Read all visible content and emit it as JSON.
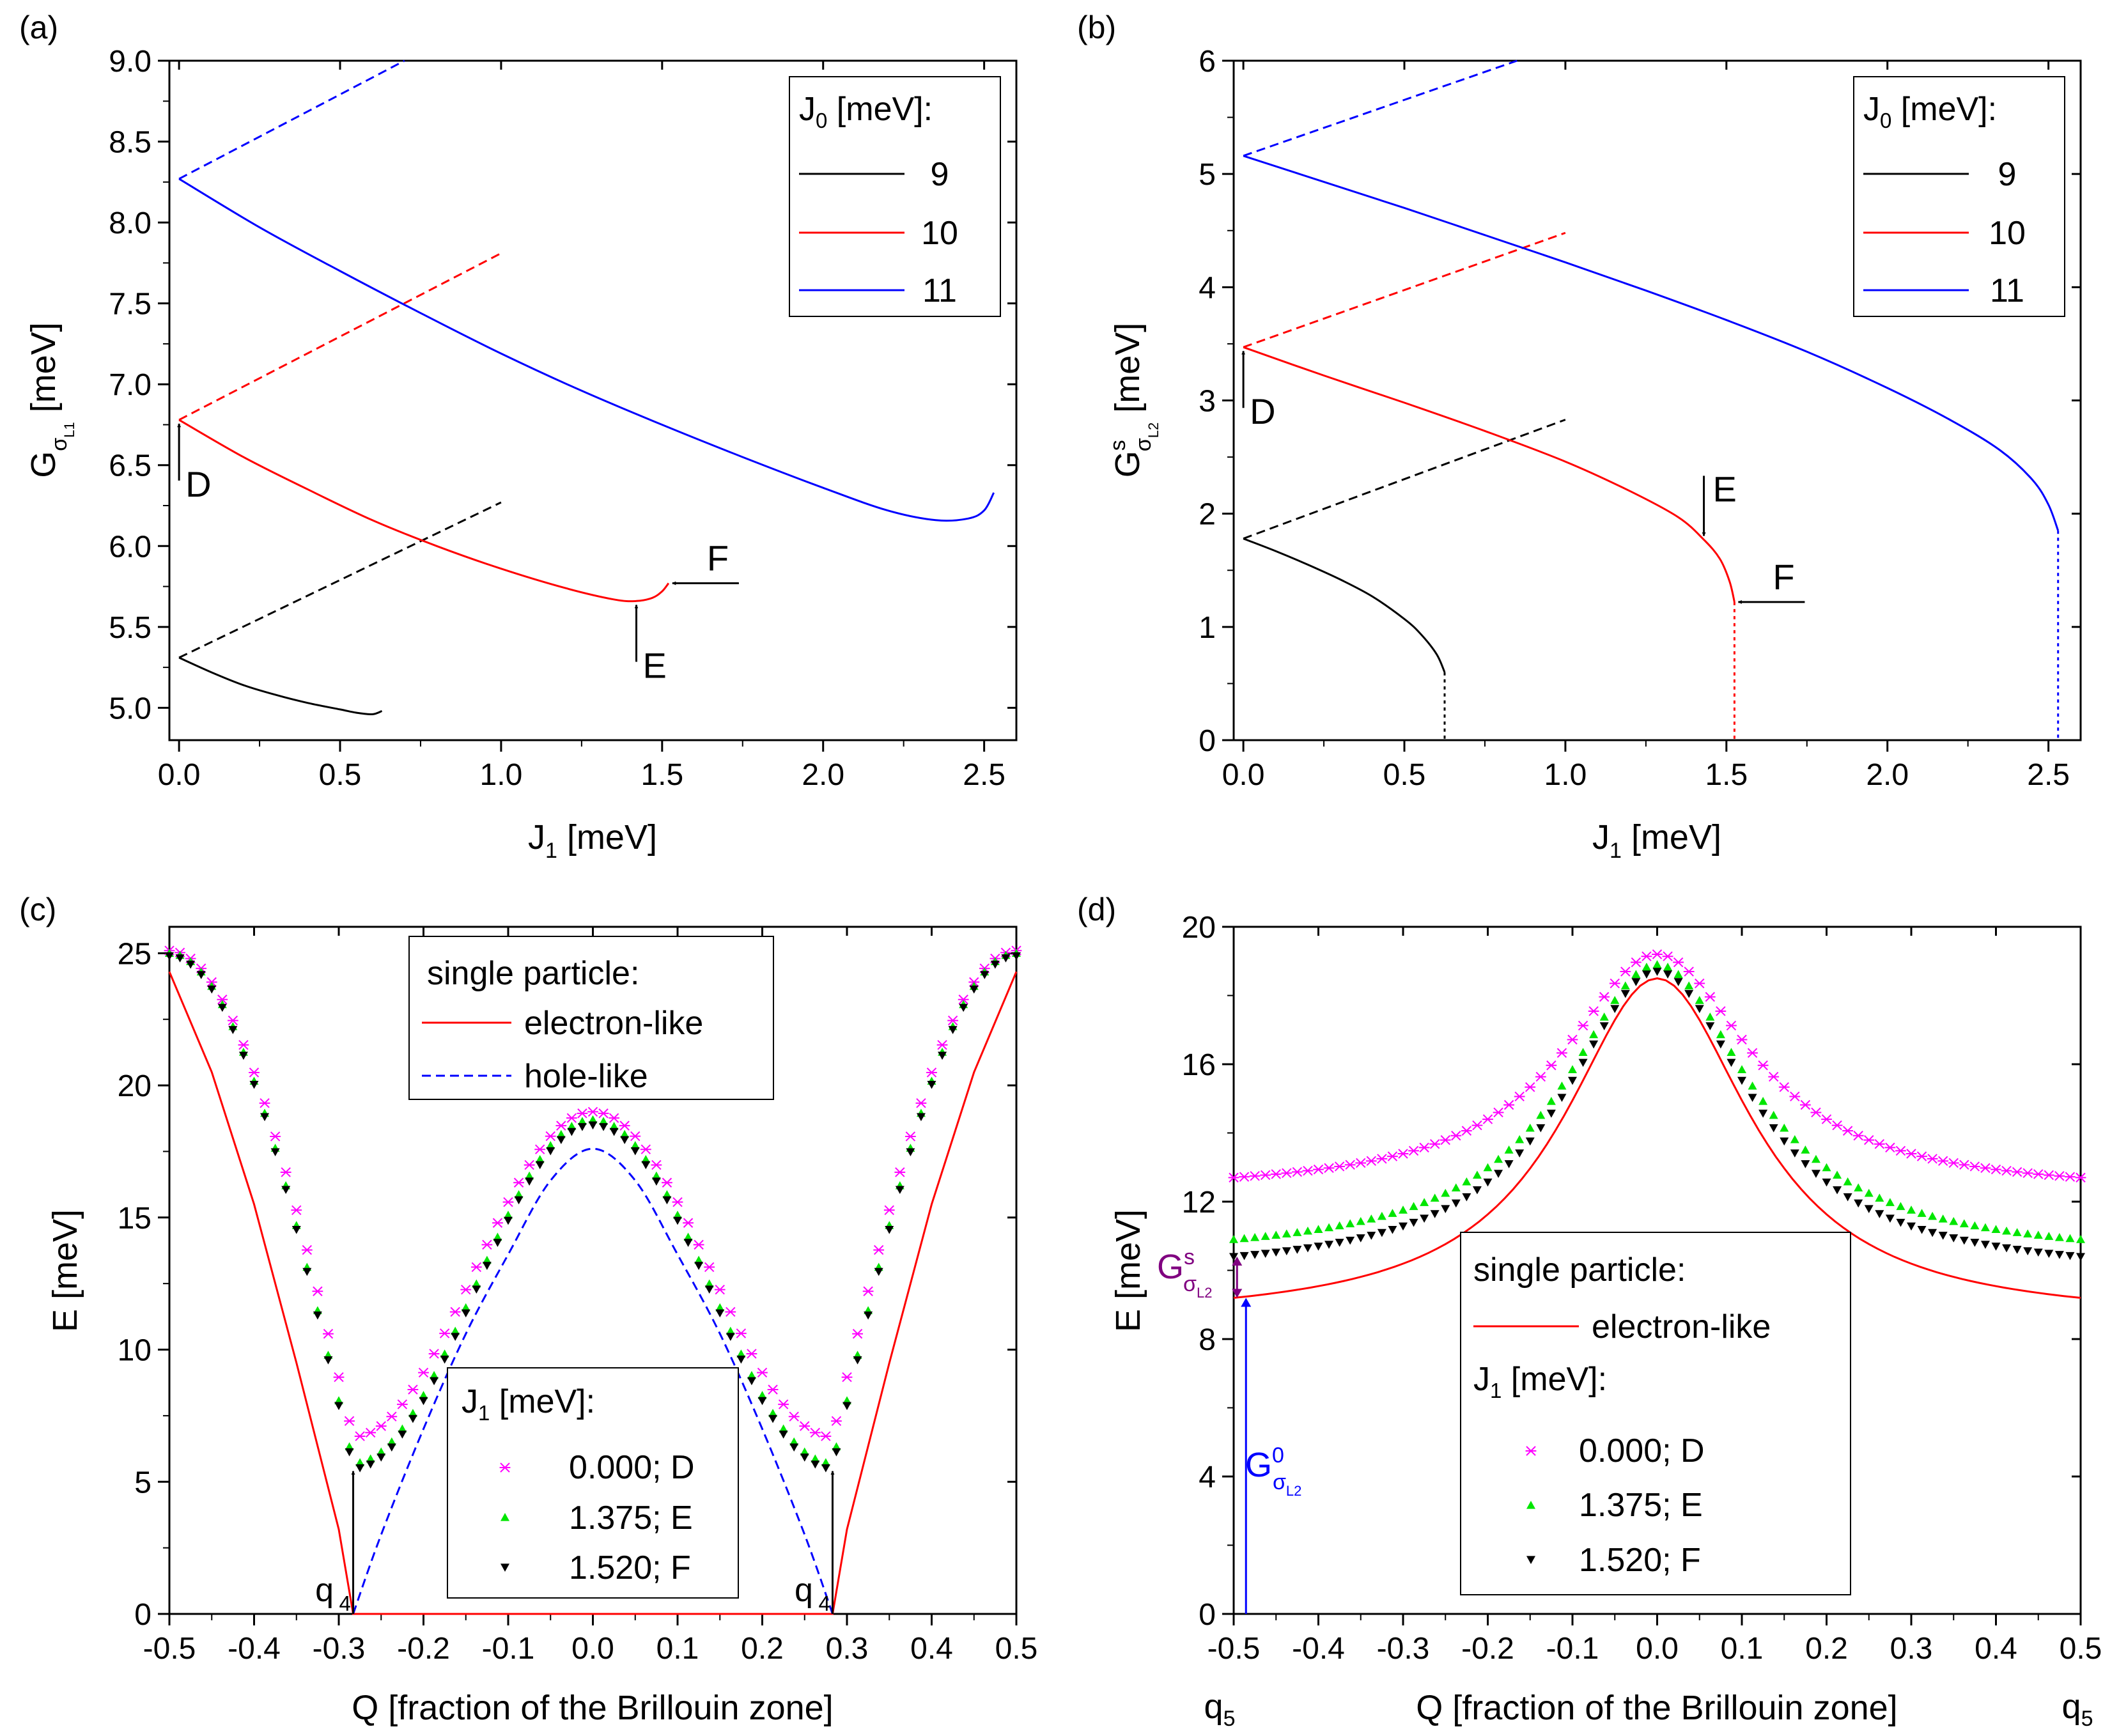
{
  "colors": {
    "black": "#000000",
    "red": "#ff0000",
    "blue": "#0000ff",
    "magenta": "#ff00ff",
    "green": "#00e600",
    "purple": "#800080",
    "axis": "#000000"
  },
  "chart_data": [
    {
      "id": "a",
      "type": "line",
      "panel_label": "(a)",
      "xlabel": "J",
      "xlabel_sub": "1",
      "xlabel_unit": " [meV]",
      "ylabel": "G",
      "ylabel_sub": "σ",
      "ylabel_subsub": "L1",
      "ylabel_unit": " [meV]",
      "xlim": [
        -0.03,
        2.6
      ],
      "ylim": [
        4.8,
        9.0
      ],
      "xticks": [
        0.0,
        0.5,
        1.0,
        1.5,
        2.0,
        2.5
      ],
      "xtick_labels": [
        "0.0",
        "0.5",
        "1.0",
        "1.5",
        "2.0",
        "2.5"
      ],
      "yticks": [
        5.0,
        5.5,
        6.0,
        6.5,
        7.0,
        7.5,
        8.0,
        8.5,
        9.0
      ],
      "ytick_labels": [
        "5.0",
        "5.5",
        "6.0",
        "6.5",
        "7.0",
        "7.5",
        "8.0",
        "8.5",
        "9.0"
      ],
      "legend": {
        "title": "J",
        "title_sub": "0",
        "title_unit": " [meV]:",
        "entries": [
          "9",
          "10",
          "11"
        ],
        "colors": [
          "black",
          "red",
          "blue"
        ]
      },
      "series": [
        {
          "name": "9",
          "color": "black",
          "dash": false,
          "x": [
            0.0,
            0.1,
            0.2,
            0.3,
            0.4,
            0.5,
            0.55,
            0.6,
            0.63
          ],
          "y": [
            5.31,
            5.22,
            5.14,
            5.08,
            5.03,
            4.99,
            4.97,
            4.96,
            4.98
          ]
        },
        {
          "name": "9 (dashed)",
          "color": "black",
          "dash": true,
          "x": [
            0.0,
            1.0
          ],
          "y": [
            5.31,
            6.27
          ]
        },
        {
          "name": "10",
          "color": "red",
          "dash": false,
          "x": [
            0.0,
            0.2,
            0.4,
            0.6,
            0.8,
            1.0,
            1.2,
            1.35,
            1.42,
            1.47,
            1.5,
            1.52
          ],
          "y": [
            6.78,
            6.55,
            6.35,
            6.16,
            6.0,
            5.86,
            5.74,
            5.67,
            5.66,
            5.68,
            5.72,
            5.77
          ]
        },
        {
          "name": "10 (dashed)",
          "color": "red",
          "dash": true,
          "x": [
            0.0,
            1.0
          ],
          "y": [
            6.78,
            7.81
          ]
        },
        {
          "name": "11",
          "color": "blue",
          "dash": false,
          "x": [
            0.0,
            0.25,
            0.5,
            0.75,
            1.0,
            1.25,
            1.5,
            1.75,
            2.0,
            2.2,
            2.35,
            2.45,
            2.5,
            2.53
          ],
          "y": [
            8.27,
            7.97,
            7.7,
            7.44,
            7.19,
            6.96,
            6.75,
            6.55,
            6.36,
            6.22,
            6.16,
            6.17,
            6.22,
            6.33
          ]
        },
        {
          "name": "11 (dashed)",
          "color": "blue",
          "dash": true,
          "x": [
            0.0,
            0.7
          ],
          "y": [
            8.27,
            9.0
          ]
        }
      ],
      "annotations": [
        {
          "text": "D",
          "x": 0.0,
          "y": 6.78,
          "dir": "up"
        },
        {
          "text": "E",
          "x": 1.42,
          "y": 5.66,
          "dir": "up"
        },
        {
          "text": "F",
          "x": 1.52,
          "y": 5.77,
          "dir": "left"
        }
      ]
    },
    {
      "id": "b",
      "type": "line",
      "panel_label": "(b)",
      "xlabel": "J",
      "xlabel_sub": "1",
      "xlabel_unit": " [meV]",
      "ylabel": "G",
      "ylabel_sup": "s",
      "ylabel_sub": "σ",
      "ylabel_subsub": "L2",
      "ylabel_unit": " [meV]",
      "xlim": [
        -0.03,
        2.6
      ],
      "ylim": [
        0,
        6
      ],
      "xticks": [
        0.0,
        0.5,
        1.0,
        1.5,
        2.0,
        2.5
      ],
      "xtick_labels": [
        "0.0",
        "0.5",
        "1.0",
        "1.5",
        "2.0",
        "2.5"
      ],
      "yticks": [
        0,
        1,
        2,
        3,
        4,
        5,
        6
      ],
      "ytick_labels": [
        "0",
        "1",
        "2",
        "3",
        "4",
        "5",
        "6"
      ],
      "legend": {
        "title": "J",
        "title_sub": "0",
        "title_unit": " [meV]:",
        "entries": [
          "9",
          "10",
          "11"
        ],
        "colors": [
          "black",
          "red",
          "blue"
        ]
      },
      "series": [
        {
          "name": "9",
          "color": "black",
          "dash": false,
          "x": [
            0.0,
            0.1,
            0.2,
            0.3,
            0.4,
            0.5,
            0.55,
            0.6,
            0.625
          ],
          "y": [
            1.78,
            1.67,
            1.55,
            1.42,
            1.27,
            1.07,
            0.94,
            0.76,
            0.6
          ]
        },
        {
          "name": "9 (dashed)",
          "color": "black",
          "dash": true,
          "x": [
            0.0,
            1.0
          ],
          "y": [
            1.78,
            2.83
          ]
        },
        {
          "name": "9 (dotted)",
          "color": "black",
          "dash": "dot",
          "x": [
            0.625,
            0.625
          ],
          "y": [
            0.6,
            0
          ]
        },
        {
          "name": "10",
          "color": "red",
          "dash": false,
          "x": [
            0.0,
            0.25,
            0.5,
            0.75,
            1.0,
            1.2,
            1.35,
            1.43,
            1.48,
            1.51,
            1.525
          ],
          "y": [
            3.47,
            3.22,
            2.98,
            2.73,
            2.46,
            2.2,
            1.97,
            1.77,
            1.6,
            1.4,
            1.22
          ]
        },
        {
          "name": "10 (dashed)",
          "color": "red",
          "dash": true,
          "x": [
            0.0,
            1.0
          ],
          "y": [
            3.47,
            4.48
          ]
        },
        {
          "name": "10 (dotted)",
          "color": "red",
          "dash": "dot",
          "x": [
            1.525,
            1.525
          ],
          "y": [
            1.22,
            0
          ]
        },
        {
          "name": "11",
          "color": "blue",
          "dash": false,
          "x": [
            0.0,
            0.25,
            0.5,
            0.75,
            1.0,
            1.25,
            1.5,
            1.75,
            2.0,
            2.2,
            2.35,
            2.45,
            2.5,
            2.53
          ],
          "y": [
            5.16,
            4.93,
            4.7,
            4.46,
            4.22,
            3.97,
            3.71,
            3.43,
            3.11,
            2.82,
            2.56,
            2.3,
            2.08,
            1.85
          ]
        },
        {
          "name": "11 (dashed)",
          "color": "blue",
          "dash": true,
          "x": [
            0.0,
            0.85
          ],
          "y": [
            5.16,
            6.0
          ]
        },
        {
          "name": "11 (dotted)",
          "color": "blue",
          "dash": "dot",
          "x": [
            2.53,
            2.53
          ],
          "y": [
            1.85,
            0
          ]
        }
      ],
      "annotations": [
        {
          "text": "D",
          "x": 0.0,
          "y": 3.47,
          "dir": "up"
        },
        {
          "text": "E",
          "x": 1.43,
          "y": 1.77,
          "dir": "down"
        },
        {
          "text": "F",
          "x": 1.525,
          "y": 1.22,
          "dir": "left"
        }
      ]
    },
    {
      "id": "c",
      "type": "line+scatter",
      "panel_label": "(c)",
      "xlabel": "Q [fraction of the Brillouin zone]",
      "ylabel": "E [meV]",
      "xlim": [
        -0.5,
        0.5
      ],
      "ylim": [
        0,
        26
      ],
      "xticks": [
        -0.5,
        -0.4,
        -0.3,
        -0.2,
        -0.1,
        0.0,
        0.1,
        0.2,
        0.3,
        0.4,
        0.5
      ],
      "xtick_labels": [
        "-0.5",
        "-0.4",
        "-0.3",
        "-0.2",
        "-0.1",
        "0.0",
        "0.1",
        "0.2",
        "0.3",
        "0.4",
        "0.5"
      ],
      "yticks": [
        0,
        5,
        10,
        15,
        20,
        25
      ],
      "ytick_labels": [
        "0",
        "5",
        "10",
        "15",
        "20",
        "25"
      ],
      "lines": [
        {
          "name": "electron-like",
          "color": "red",
          "dash": false,
          "x": [
            -0.5,
            -0.45,
            -0.4,
            -0.35,
            -0.3,
            -0.283,
            0.283,
            0.3,
            0.35,
            0.4,
            0.45,
            0.5
          ],
          "y": [
            24.3,
            20.5,
            15.5,
            9.5,
            3.2,
            0.0,
            0.0,
            3.2,
            9.5,
            15.5,
            20.5,
            24.3
          ]
        },
        {
          "name": "hole-like",
          "color": "blue",
          "dash": true,
          "x": [
            -0.283,
            -0.25,
            -0.2,
            -0.15,
            -0.1,
            -0.05,
            0.0,
            0.05,
            0.1,
            0.15,
            0.2,
            0.25,
            0.283
          ],
          "y": [
            0.0,
            3.0,
            7.0,
            10.6,
            13.6,
            16.4,
            17.6,
            16.4,
            13.6,
            10.6,
            7.0,
            3.0,
            0.0
          ]
        }
      ],
      "markers": [
        {
          "name": "0.000; D",
          "color": "magenta",
          "shape": "x",
          "minimum": 6.7,
          "peak": 19.0,
          "edge": 25.1,
          "q": 0.283
        },
        {
          "name": "1.375; E",
          "color": "green",
          "shape": "tri-up",
          "minimum": 5.7,
          "peak": 18.7,
          "edge": 25.0,
          "q": 0.283
        },
        {
          "name": "1.520; F",
          "color": "black",
          "shape": "tri-down",
          "minimum": 5.5,
          "peak": 18.5,
          "edge": 24.9,
          "q": 0.283
        }
      ],
      "legend_top": {
        "title": "single particle:",
        "entries": [
          "electron-like",
          "hole-like"
        ]
      },
      "legend_bottom": {
        "title": "J",
        "title_sub": "1",
        "title_unit": " [meV]:",
        "entries": [
          "0.000; D",
          "1.375; E",
          "1.520; F"
        ]
      },
      "annotations": [
        {
          "text": "q",
          "sub": "4",
          "x": -0.283,
          "y_from": 0.0,
          "y_to": 5.5
        },
        {
          "text": "q",
          "sub": "4",
          "x": 0.283,
          "y_from": 0.0,
          "y_to": 5.5
        }
      ]
    },
    {
      "id": "d",
      "type": "line+scatter",
      "panel_label": "(d)",
      "xlabel": "Q [fraction of the Brillouin zone]",
      "ylabel": "E [meV]",
      "xlim": [
        -0.5,
        0.5
      ],
      "ylim": [
        0,
        20
      ],
      "xticks": [
        -0.5,
        -0.4,
        -0.3,
        -0.2,
        -0.1,
        0.0,
        0.1,
        0.2,
        0.3,
        0.4,
        0.5
      ],
      "xtick_labels": [
        "-0.5",
        "-0.4",
        "-0.3",
        "-0.2",
        "-0.1",
        "0.0",
        "0.1",
        "0.2",
        "0.3",
        "0.4",
        "0.5"
      ],
      "yticks": [
        0,
        4,
        8,
        12,
        16,
        20
      ],
      "ytick_labels": [
        "0",
        "4",
        "8",
        "12",
        "16",
        "20"
      ],
      "lines": [
        {
          "name": "electron-like",
          "color": "red",
          "dash": false,
          "base": 9.2,
          "peak": 18.5
        }
      ],
      "markers": [
        {
          "name": "0.000; D",
          "color": "magenta",
          "shape": "x",
          "base": 12.7,
          "peak": 19.2
        },
        {
          "name": "1.375; E",
          "color": "green",
          "shape": "tri-up",
          "base": 10.9,
          "peak": 18.9
        },
        {
          "name": "1.520; F",
          "color": "black",
          "shape": "tri-down",
          "base": 10.4,
          "peak": 18.7
        }
      ],
      "legend": {
        "title": "single particle:",
        "line_entry": "electron-like",
        "title2": "J",
        "title2_sub": "1",
        "title2_unit": " [meV]:",
        "entries": [
          "0.000; D",
          "1.375; E",
          "1.520; F"
        ]
      },
      "edge_labels": {
        "left": "q",
        "left_sub": "5",
        "right": "q",
        "right_sub": "5"
      },
      "annotations": [
        {
          "text": "G",
          "sup": "s",
          "sub": "σ",
          "subsub": "L2",
          "color": "purple",
          "x": -0.49,
          "y_from": 9.2,
          "y_to": 10.4
        },
        {
          "text": "G",
          "sup": "0",
          "sub": "σ",
          "subsub": "L2",
          "color": "blue",
          "x": -0.49,
          "y_from": 0.0,
          "y_to": 9.2
        }
      ]
    }
  ]
}
